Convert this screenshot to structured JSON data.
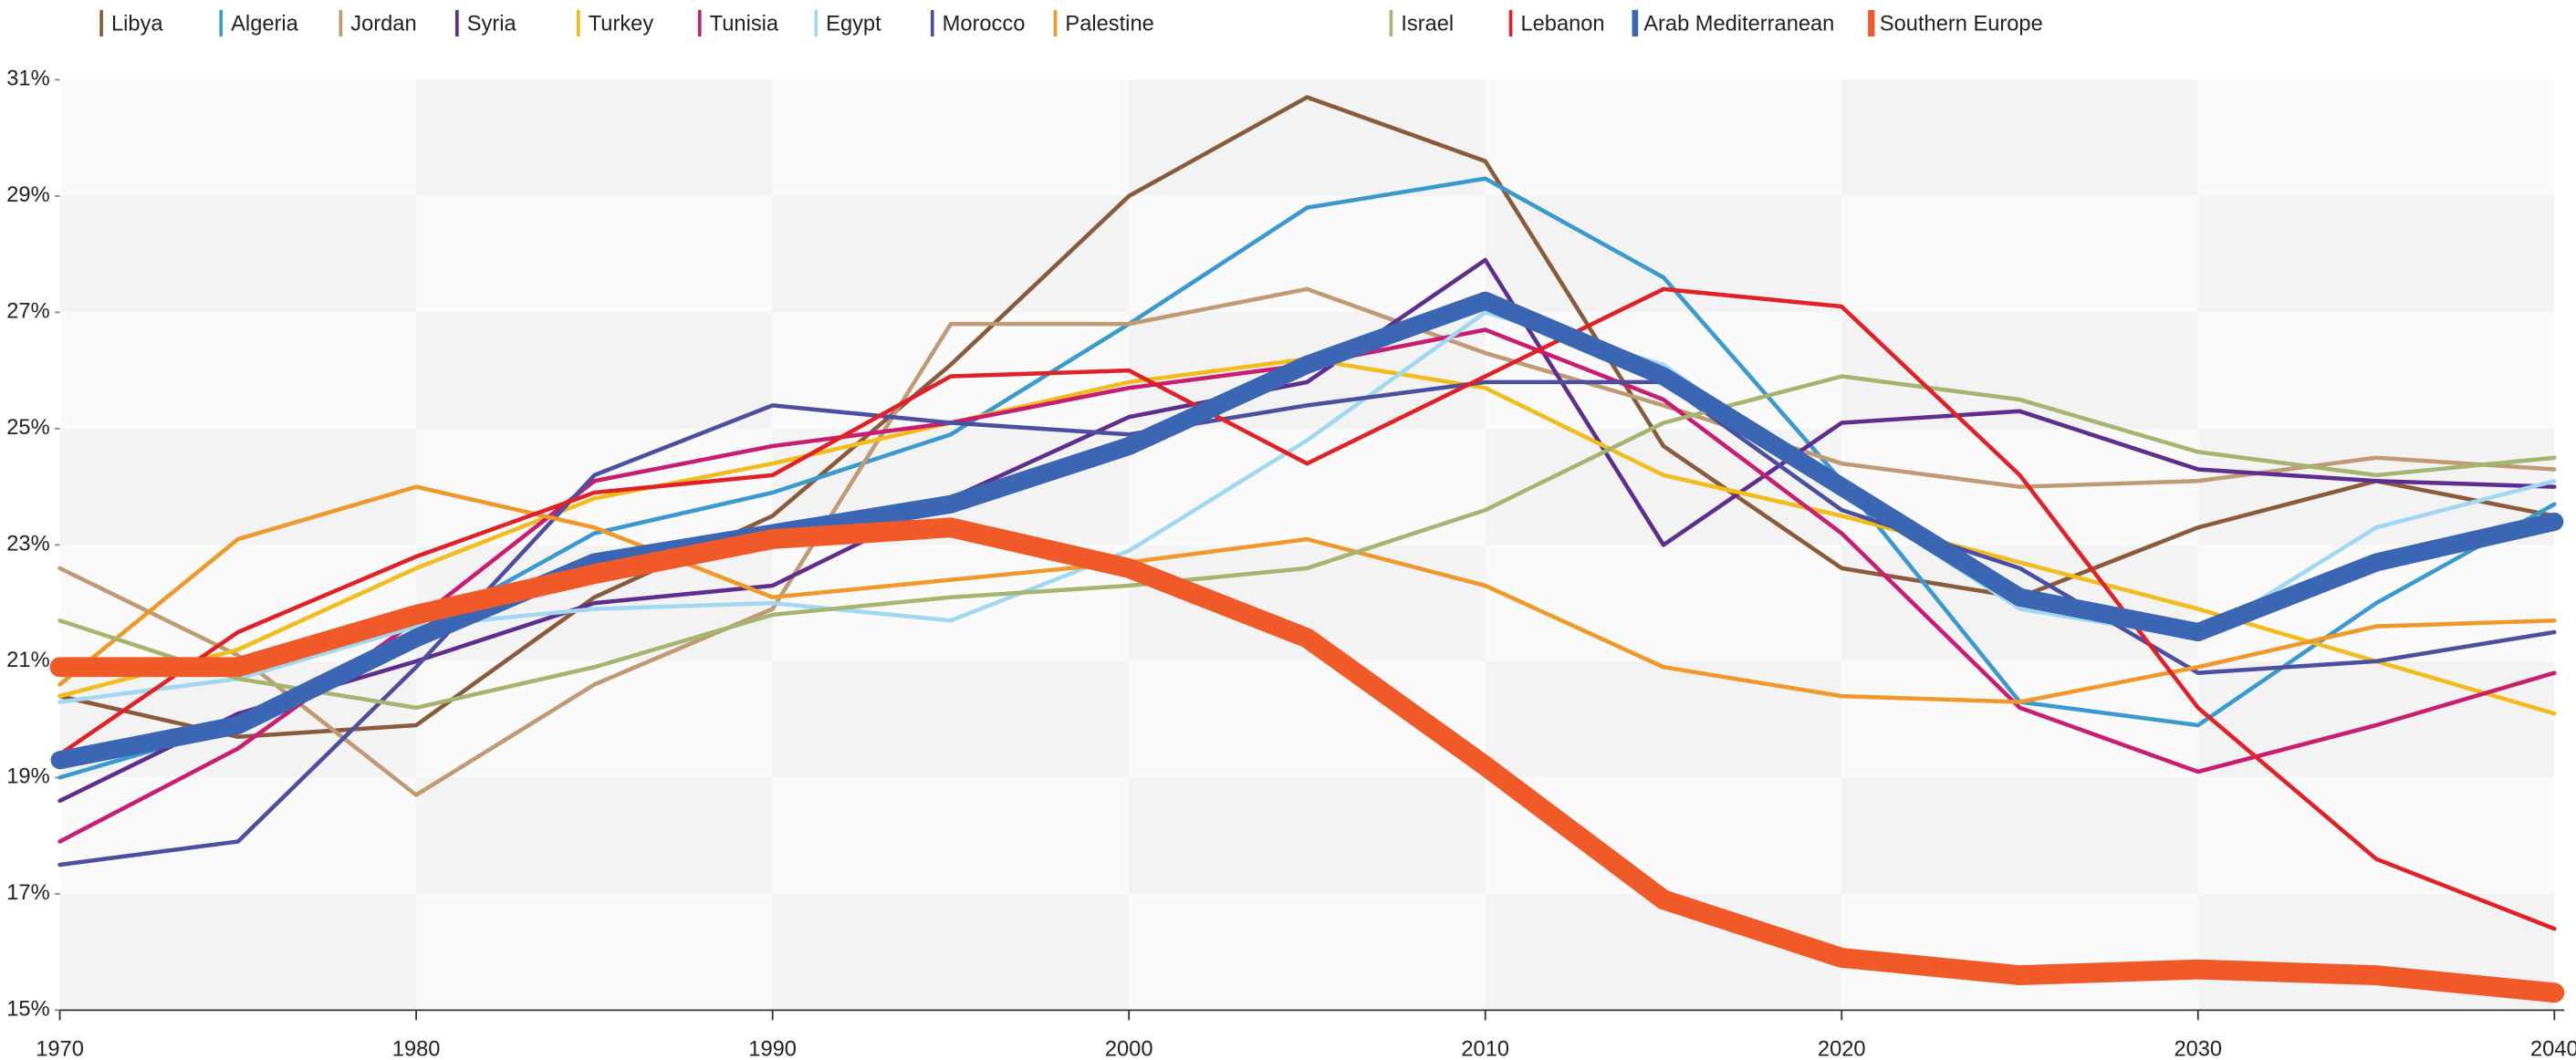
{
  "chart_data": {
    "type": "line",
    "x": [
      1970,
      1975,
      1980,
      1985,
      1990,
      1995,
      2000,
      2005,
      2010,
      2015,
      2020,
      2025,
      2030,
      2035,
      2040
    ],
    "xlim": [
      1970,
      2040
    ],
    "xticks": [
      1970,
      1980,
      1990,
      2000,
      2010,
      2020,
      2030,
      2040
    ],
    "ylim": [
      15,
      31
    ],
    "yticks": [
      {
        "value": 15,
        "label": "15%"
      },
      {
        "value": 17,
        "label": "17%"
      },
      {
        "value": 19,
        "label": "19%"
      },
      {
        "value": 21,
        "label": "21%"
      },
      {
        "value": 23,
        "label": "23%"
      },
      {
        "value": 25,
        "label": "25%"
      },
      {
        "value": 27,
        "label": "27%"
      },
      {
        "value": 29,
        "label": "29%"
      },
      {
        "value": 31,
        "label": "31%"
      }
    ],
    "legend": "top",
    "series": [
      {
        "name": "Libya",
        "color": "#8a5a3a",
        "linewidth": 2.5,
        "values": [
          20.4,
          19.7,
          19.9,
          22.1,
          23.5,
          26.1,
          29.0,
          30.7,
          29.6,
          24.7,
          22.6,
          22.1,
          23.3,
          24.1,
          23.5
        ]
      },
      {
        "name": "Algeria",
        "color": "#3a9ad0",
        "linewidth": 2.5,
        "values": [
          19.0,
          19.9,
          21.5,
          23.2,
          23.9,
          24.9,
          26.8,
          28.8,
          29.3,
          27.6,
          24.1,
          20.3,
          19.9,
          22.0,
          23.7
        ]
      },
      {
        "name": "Jordan",
        "color": "#bf9a72",
        "linewidth": 2.5,
        "values": [
          22.6,
          21.1,
          18.7,
          20.6,
          21.9,
          26.8,
          26.8,
          27.4,
          26.3,
          25.4,
          24.4,
          24.0,
          24.1,
          24.5,
          24.3
        ]
      },
      {
        "name": "Syria",
        "color": "#5e2d8e",
        "linewidth": 2.5,
        "values": [
          18.6,
          20.1,
          21.0,
          22.0,
          22.3,
          23.8,
          25.2,
          25.8,
          27.9,
          23.0,
          25.1,
          25.3,
          24.3,
          24.1,
          24.0
        ]
      },
      {
        "name": "Turkey",
        "color": "#f2bc1c",
        "linewidth": 2.5,
        "values": [
          20.4,
          21.2,
          22.6,
          23.8,
          24.4,
          25.1,
          25.8,
          26.2,
          25.7,
          24.2,
          23.5,
          22.7,
          21.9,
          21.0,
          20.1
        ]
      },
      {
        "name": "Tunisia",
        "color": "#c91d72",
        "linewidth": 2.5,
        "values": [
          17.9,
          19.5,
          21.7,
          24.1,
          24.7,
          25.1,
          25.7,
          26.1,
          26.7,
          25.5,
          23.2,
          20.2,
          19.1,
          19.9,
          20.8
        ]
      },
      {
        "name": "Egypt",
        "color": "#9fd8f0",
        "linewidth": 2.5,
        "values": [
          20.3,
          20.7,
          21.6,
          21.9,
          22.0,
          21.7,
          22.9,
          24.8,
          27.0,
          26.1,
          23.9,
          21.9,
          21.4,
          23.3,
          24.1
        ]
      },
      {
        "name": "Morocco",
        "color": "#4c4fa0",
        "linewidth": 2.5,
        "values": [
          17.5,
          17.9,
          20.9,
          24.2,
          25.4,
          25.1,
          24.9,
          25.4,
          25.8,
          25.8,
          23.6,
          22.6,
          20.8,
          21.0,
          21.5
        ]
      },
      {
        "name": "Palestine",
        "color": "#f0982a",
        "linewidth": 2.5,
        "values": [
          20.6,
          23.1,
          24.0,
          23.3,
          22.1,
          22.4,
          22.7,
          23.1,
          22.3,
          20.9,
          20.4,
          20.3,
          20.9,
          21.6,
          21.7
        ]
      },
      {
        "name": "Israel",
        "color": "#a3b56e",
        "linewidth": 2.5,
        "values": [
          21.7,
          20.7,
          20.2,
          20.9,
          21.8,
          22.1,
          22.3,
          22.6,
          23.6,
          25.1,
          25.9,
          25.5,
          24.6,
          24.2,
          24.5
        ]
      },
      {
        "name": "Lebanon",
        "color": "#e02228",
        "linewidth": 2.5,
        "values": [
          19.4,
          21.5,
          22.8,
          23.9,
          24.2,
          25.9,
          26.0,
          24.4,
          25.9,
          27.4,
          27.1,
          24.2,
          20.2,
          17.6,
          16.4
        ]
      },
      {
        "name": "Arab Mediterranean",
        "color": "#3a66b4",
        "linewidth": 11,
        "values": [
          19.3,
          19.9,
          21.4,
          22.7,
          23.2,
          23.7,
          24.7,
          26.1,
          27.2,
          25.9,
          24.0,
          22.1,
          21.5,
          22.7,
          23.4
        ]
      },
      {
        "name": "Southern Europe",
        "color": "#f05a28",
        "linewidth": 12,
        "values": [
          20.9,
          20.9,
          21.8,
          22.5,
          23.1,
          23.3,
          22.6,
          21.4,
          19.2,
          16.9,
          15.9,
          15.6,
          15.7,
          15.6,
          15.3
        ]
      }
    ]
  }
}
